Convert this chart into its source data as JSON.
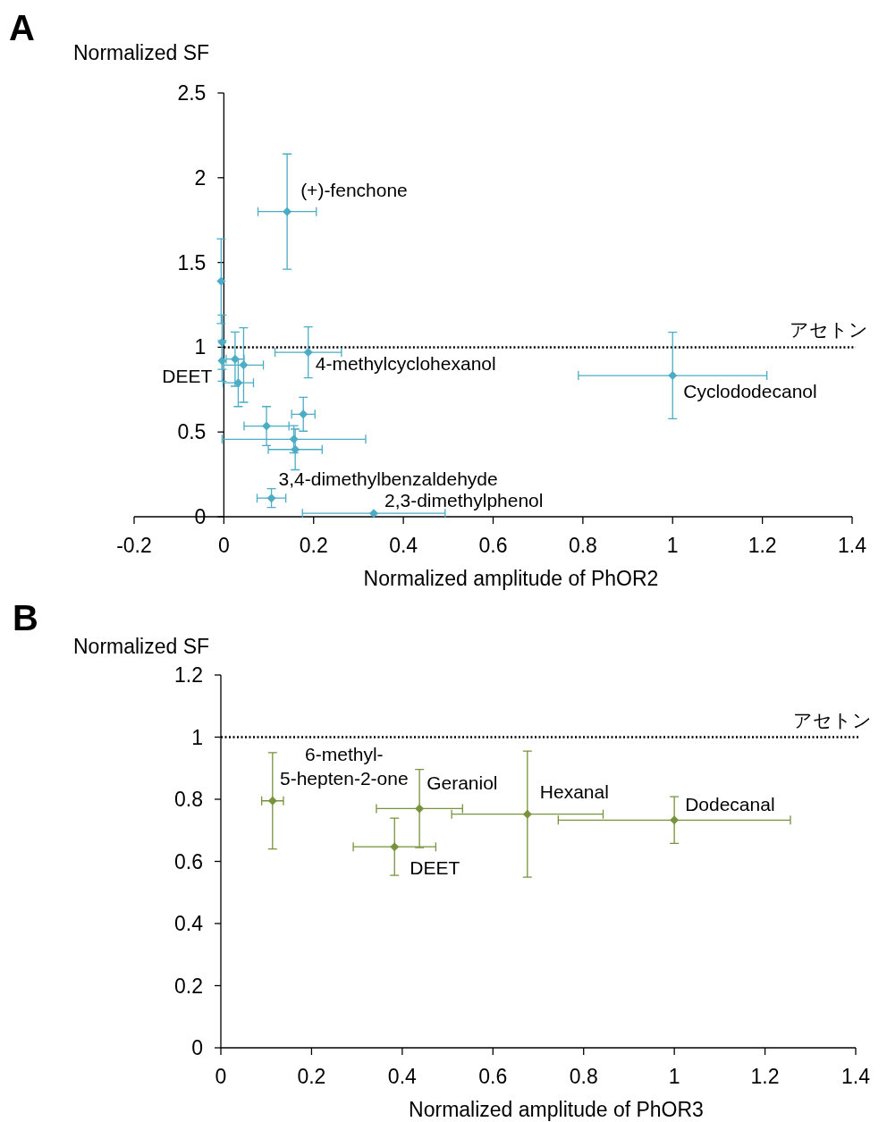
{
  "chart_data": [
    {
      "type": "scatter",
      "title": "A",
      "xlabel": "Normalized amplitude of PhOR2",
      "ylabel": "Normalized SF",
      "xlim": [
        -0.2,
        1.4
      ],
      "ylim": [
        0,
        2.5
      ],
      "xticks": [
        -0.2,
        0,
        0.2,
        0.4,
        0.6,
        0.8,
        1,
        1.2,
        1.4
      ],
      "yticks": [
        0,
        0.5,
        1,
        1.5,
        2,
        2.5
      ],
      "marker": "diamond",
      "series": [
        {
          "color": "#4bacc6",
          "x": [
            0.141,
            -0.006,
            -0.004,
            -0.004,
            0.025,
            0.044,
            0.032,
            0.188,
            0.177,
            0.095,
            0.156,
            0.159,
            0.106,
            0.334,
            1.0
          ],
          "values": [
            1.8,
            1.39,
            1.03,
            0.92,
            0.93,
            0.895,
            0.79,
            0.97,
            0.605,
            0.535,
            0.457,
            0.397,
            0.11,
            0.02,
            0.833
          ],
          "errors": [
            0.34,
            0.25,
            0.16,
            0.12,
            0.16,
            0.22,
            0.14,
            0.15,
            0.1,
            0.115,
            0.08,
            0.12,
            0.055,
            null,
            0.255
          ],
          "xerrors": [
            0.065,
            null,
            null,
            null,
            0.02,
            0.044,
            0.034,
            0.074,
            0.026,
            0.05,
            0.16,
            0.06,
            0.032,
            0.159,
            0.21
          ]
        }
      ],
      "ref_lines": [
        {
          "axis": "y",
          "value": 1,
          "label": "アセトン",
          "line_style": "dotted",
          "color": "#000000"
        }
      ],
      "annotations": [
        {
          "text": "(+)-fenchone",
          "x": 0.141,
          "y": 1.8
        },
        {
          "text": "4-methylcyclohexanol",
          "x": 0.188,
          "y": 0.97
        },
        {
          "text": "DEET",
          "x": -0.004,
          "y": 0.92
        },
        {
          "text": "Cyclododecanol",
          "x": 1.0,
          "y": 0.833
        },
        {
          "text": "3,4-dimethylbenzaldehyde",
          "x": 0.106,
          "y": 0.11
        },
        {
          "text": "2,3-dimethylphenol",
          "x": 0.334,
          "y": 0.02
        }
      ]
    },
    {
      "type": "scatter",
      "title": "B",
      "xlabel": "Normalized amplitude of PhOR3",
      "ylabel": "Normalized SF",
      "xlim": [
        0,
        1.4
      ],
      "ylim": [
        0,
        1.2
      ],
      "xticks": [
        0,
        0.2,
        0.4,
        0.6,
        0.8,
        1,
        1.2,
        1.4
      ],
      "yticks": [
        0,
        0.2,
        0.4,
        0.6,
        0.8,
        1,
        1.2
      ],
      "marker": "diamond",
      "series": [
        {
          "color": "#77933c",
          "x": [
            0.114,
            0.438,
            0.383,
            0.676,
            1.0
          ],
          "values": [
            0.795,
            0.77,
            0.647,
            0.752,
            0.733
          ],
          "errors": [
            0.155,
            0.126,
            0.092,
            0.203,
            0.075
          ],
          "xerrors": [
            0.024,
            0.095,
            0.091,
            0.167,
            0.256
          ]
        }
      ],
      "ref_lines": [
        {
          "axis": "y",
          "value": 1,
          "label": "アセトン",
          "line_style": "dotted",
          "color": "#000000"
        }
      ],
      "annotations": [
        {
          "text": "6-methyl-5-hepten-2-one",
          "x": 0.114,
          "y": 0.795
        },
        {
          "text": "Geraniol",
          "x": 0.438,
          "y": 0.77
        },
        {
          "text": "DEET",
          "x": 0.383,
          "y": 0.647
        },
        {
          "text": "Hexanal",
          "x": 0.676,
          "y": 0.752
        },
        {
          "text": "Dodecanal",
          "x": 1.0,
          "y": 0.733
        }
      ]
    }
  ]
}
